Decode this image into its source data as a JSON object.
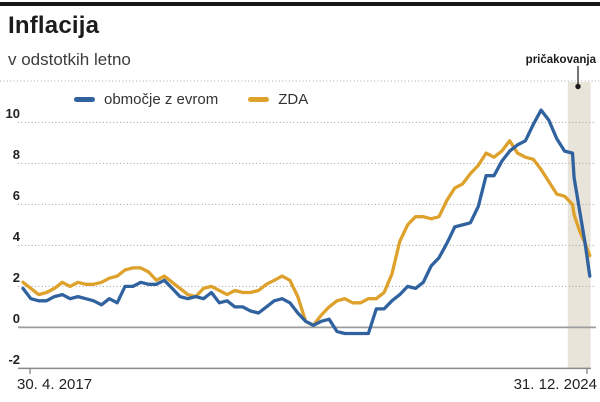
{
  "header": {
    "title": "Inflacija",
    "subtitle": "v odstotkih letno"
  },
  "chart_data": {
    "type": "line",
    "title": "Inflacija",
    "subtitle": "v odstotkih letno",
    "x_axis": {
      "start_label": "30. 4. 2017",
      "end_label": "31. 12. 2024",
      "start": "2017-04",
      "frequency": "monthly"
    },
    "y_ticks": [
      10,
      8,
      6,
      4,
      2,
      0,
      -2
    ],
    "ylim": [
      -2,
      12
    ],
    "grid": "dotted horizontal lines, solid zero line",
    "legend_position": "top",
    "series": [
      {
        "id": "euro-area",
        "name": "območje z evrom",
        "color": "#30629f",
        "values": [
          1.9,
          1.4,
          1.3,
          1.3,
          1.5,
          1.6,
          1.4,
          1.5,
          1.4,
          1.3,
          1.1,
          1.4,
          1.2,
          2.0,
          2.0,
          2.2,
          2.1,
          2.1,
          2.3,
          1.9,
          1.5,
          1.4,
          1.5,
          1.4,
          1.7,
          1.2,
          1.3,
          1.0,
          1.0,
          0.8,
          0.7,
          1.0,
          1.3,
          1.4,
          1.2,
          0.7,
          0.3,
          0.1,
          0.3,
          0.4,
          -0.2,
          -0.3,
          -0.3,
          -0.3,
          -0.3,
          0.9,
          0.9,
          1.3,
          1.6,
          2.0,
          1.9,
          2.2,
          3.0,
          3.4,
          4.1,
          4.9,
          5.0,
          5.1,
          5.9,
          7.4,
          7.4,
          8.1,
          8.6,
          8.9,
          9.1,
          9.9,
          10.6,
          10.1,
          9.2,
          8.6,
          8.5
        ],
        "forecast_points_compressed": [
          [
            70.2,
            7.3
          ],
          [
            70.9,
            5.7
          ],
          [
            71.6,
            4.1
          ],
          [
            72.2,
            2.5
          ]
        ],
        "end_expectation_value": 2.5
      },
      {
        "id": "zda",
        "name": "ZDA",
        "color": "#dea12b",
        "values": [
          2.2,
          1.9,
          1.6,
          1.7,
          1.9,
          2.2,
          2.0,
          2.2,
          2.1,
          2.1,
          2.2,
          2.4,
          2.5,
          2.8,
          2.9,
          2.9,
          2.7,
          2.3,
          2.5,
          2.2,
          1.9,
          1.6,
          1.5,
          1.9,
          2.0,
          1.8,
          1.6,
          1.8,
          1.7,
          1.7,
          1.8,
          2.1,
          2.3,
          2.5,
          2.3,
          1.5,
          0.3,
          0.1,
          0.6,
          1.0,
          1.3,
          1.4,
          1.2,
          1.2,
          1.4,
          1.4,
          1.7,
          2.6,
          4.2,
          5.0,
          5.4,
          5.4,
          5.3,
          5.4,
          6.2,
          6.8,
          7.0,
          7.5,
          7.9,
          8.5,
          8.3,
          8.6,
          9.1,
          8.5,
          8.3,
          8.2,
          7.7,
          7.1,
          6.5,
          6.4,
          6.0
        ],
        "forecast_points_compressed": [
          [
            70.2,
            5.5
          ],
          [
            70.9,
            4.7
          ],
          [
            71.6,
            4.1
          ],
          [
            72.2,
            3.5
          ]
        ],
        "end_expectation_value": 3.5
      }
    ],
    "expectations_band": {
      "label": "pričakovanja",
      "color": "#e8e4d9",
      "x_from_month": 69.4,
      "x_to_month": 72.3
    }
  }
}
